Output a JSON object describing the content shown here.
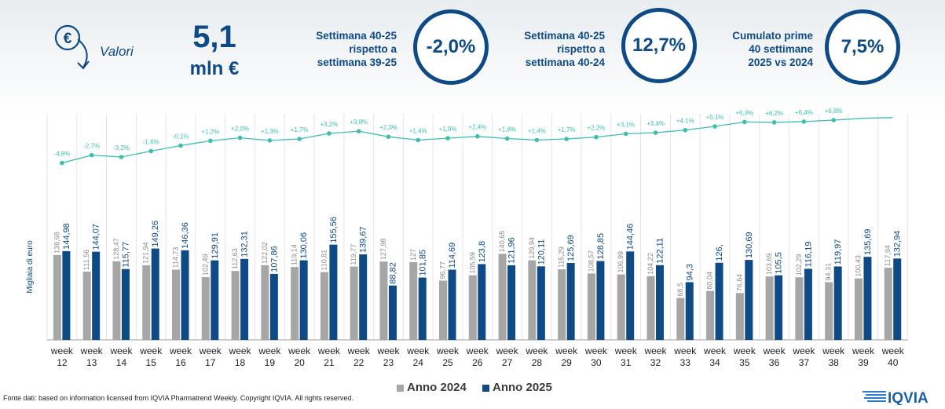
{
  "header": {
    "valori_label": "Valori",
    "big_value": "5,1",
    "big_unit": "mln €"
  },
  "kpis": [
    {
      "lines": [
        "Settimana 40-25",
        "rispetto a",
        "settimana 39-25"
      ],
      "value": "-2,0%"
    },
    {
      "lines": [
        "Settimana 40-25",
        "rispetto a",
        "settimana 40-24"
      ],
      "value": "12,7%"
    },
    {
      "lines": [
        "Cumulato prime",
        "40 settimane",
        "2025 vs 2024"
      ],
      "value": "7,5%"
    }
  ],
  "colors": {
    "primary": "#0d4a86",
    "series_2024": "#a6a6a6",
    "series_2025": "#0d4a86",
    "trend": "#3cbfae"
  },
  "chart_data": {
    "type": "bar",
    "ylabel": "Migliaia di euro",
    "ylim": [
      0,
      160
    ],
    "grid": false,
    "legend_placement": "bottom",
    "categories": [
      "week 12",
      "week 13",
      "week 14",
      "week 15",
      "week 16",
      "week 17",
      "week 18",
      "week 19",
      "week 20",
      "week 21",
      "week 22",
      "week 23",
      "week 24",
      "week 25",
      "week 26",
      "week 27",
      "week 28",
      "week 29",
      "week 30",
      "week 31",
      "week 32",
      "week 33",
      "week 34",
      "week 35",
      "week 36",
      "week 37",
      "week 38",
      "week 39",
      "week 40"
    ],
    "series": [
      {
        "name": "Anno 2024",
        "values": [
          138.68,
          111.56,
          128.47,
          121.94,
          114.73,
          102.49,
          112.63,
          122.02,
          119.14,
          110.81,
          119.77,
          127.98,
          127,
          96.77,
          105.59,
          140.65,
          129.94,
          115.29,
          108.57,
          106.99,
          104.22,
          68.5,
          80.04,
          76.64,
          103.69,
          102.29,
          94.31,
          100.43,
          117.94
        ],
        "labels": [
          "138,68",
          "111,56",
          "128,47",
          "121,94",
          "114,73",
          "102,49",
          "112,63",
          "122,02",
          "119,14",
          "110,81",
          "119,77",
          "127,98",
          "127",
          "96,77",
          "105,59",
          "140,65",
          "129,94",
          "115,29",
          "108,57",
          "106,99",
          "104,22",
          "68,5",
          "80,04",
          "76,64",
          "103,69",
          "102,29",
          "94,31",
          "100,43",
          "117,94"
        ]
      },
      {
        "name": "Anno 2025",
        "values": [
          144.98,
          144.07,
          115.77,
          149.26,
          146.36,
          129.91,
          132.31,
          107.86,
          130.06,
          155.56,
          139.67,
          88.82,
          101.85,
          114.69,
          123.8,
          121.96,
          120.11,
          125.69,
          128.85,
          144.46,
          122.11,
          94.3,
          126,
          130.69,
          105.5,
          116.19,
          119.97,
          135.69,
          132.94
        ],
        "labels": [
          "144,98",
          "144,07",
          "115,77",
          "149,26",
          "146,36",
          "129,91",
          "132,31",
          "107,86",
          "130,06",
          "155,56",
          "139,67",
          "88,82",
          "101,85",
          "114,69",
          "123,8",
          "121,96",
          "120,11",
          "125,69",
          "128,85",
          "144,46",
          "122,11",
          "94,3",
          "126,",
          "130,69",
          "105,5",
          "116,19",
          "119,97",
          "135,69",
          "132,94"
        ]
      }
    ],
    "trend": {
      "values": [
        -4.8,
        -2.7,
        -3.2,
        -1.6,
        -0.1,
        1.2,
        2.0,
        1.3,
        1.7,
        3.2,
        3.8,
        2.3,
        1.4,
        1.9,
        2.4,
        1.8,
        1.4,
        1.7,
        2.2,
        3.1,
        3.4,
        4.1,
        5.1,
        6.3,
        6.2,
        6.4,
        6.8,
        7.3,
        7.5
      ],
      "labels": [
        "-4,8%",
        "-2,7%",
        "-3,2%",
        "-1,6%",
        "-0,1%",
        "+1,2%",
        "+2,0%",
        "+1,3%",
        "+1,7%",
        "+3,2%",
        "+3,8%",
        "+2,3%",
        "+1,4%",
        "+1,9%",
        "+2,4%",
        "+1,8%",
        "+1,4%",
        "+1,7%",
        "+2,2%",
        "+3,1%",
        "+3,4%",
        "+4,1%",
        "+5,1%",
        "+6,3%",
        "+6,2%",
        "+6,4%",
        "+6,8%",
        "",
        ""
      ]
    }
  },
  "legend": {
    "items": [
      "Anno 2024",
      "Anno 2025"
    ]
  },
  "footer": {
    "source": "Fonte dati: based on information licensed from IQVIA Pharmatrend Weekly. Copyright IQVIA. All rights reserved."
  },
  "logo": {
    "text": "IQVIA"
  }
}
